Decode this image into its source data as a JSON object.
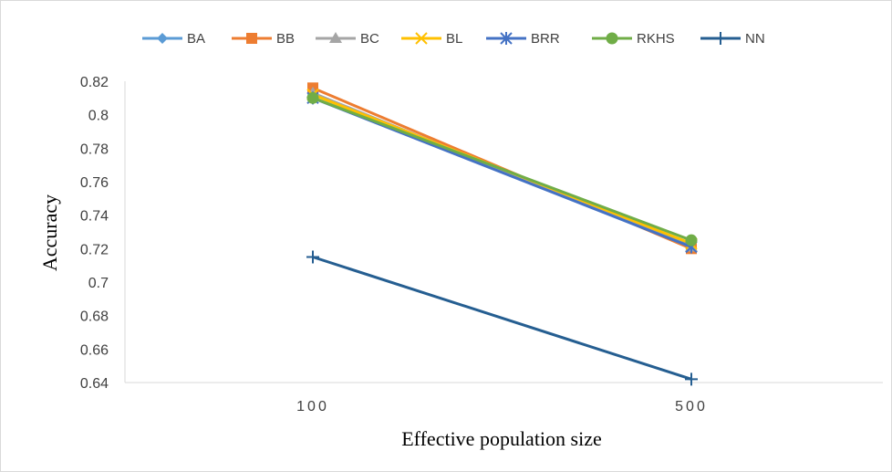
{
  "chart_data": {
    "type": "line",
    "title": "",
    "xlabel": "Effective population  size",
    "ylabel": "Accuracy",
    "categories": [
      "100",
      "500"
    ],
    "ylim": [
      0.64,
      0.82
    ],
    "ytick_step": 0.02,
    "grid": false,
    "legend_position": "top",
    "series": [
      {
        "name": "BA",
        "values": [
          0.812,
          0.722
        ],
        "color": "#5B9BD5",
        "marker": "diamond"
      },
      {
        "name": "BB",
        "values": [
          0.816,
          0.72
        ],
        "color": "#ED7D31",
        "marker": "square"
      },
      {
        "name": "BC",
        "values": [
          0.813,
          0.721
        ],
        "color": "#A5A5A5",
        "marker": "triangle"
      },
      {
        "name": "BL",
        "values": [
          0.812,
          0.723
        ],
        "color": "#FFC000",
        "marker": "x"
      },
      {
        "name": "BRR",
        "values": [
          0.81,
          0.721
        ],
        "color": "#4472C4",
        "marker": "star"
      },
      {
        "name": "RKHS",
        "values": [
          0.81,
          0.725
        ],
        "color": "#70AD47",
        "marker": "circle"
      },
      {
        "name": "NN",
        "values": [
          0.715,
          0.642
        ],
        "color": "#255E91",
        "marker": "plus"
      }
    ]
  }
}
